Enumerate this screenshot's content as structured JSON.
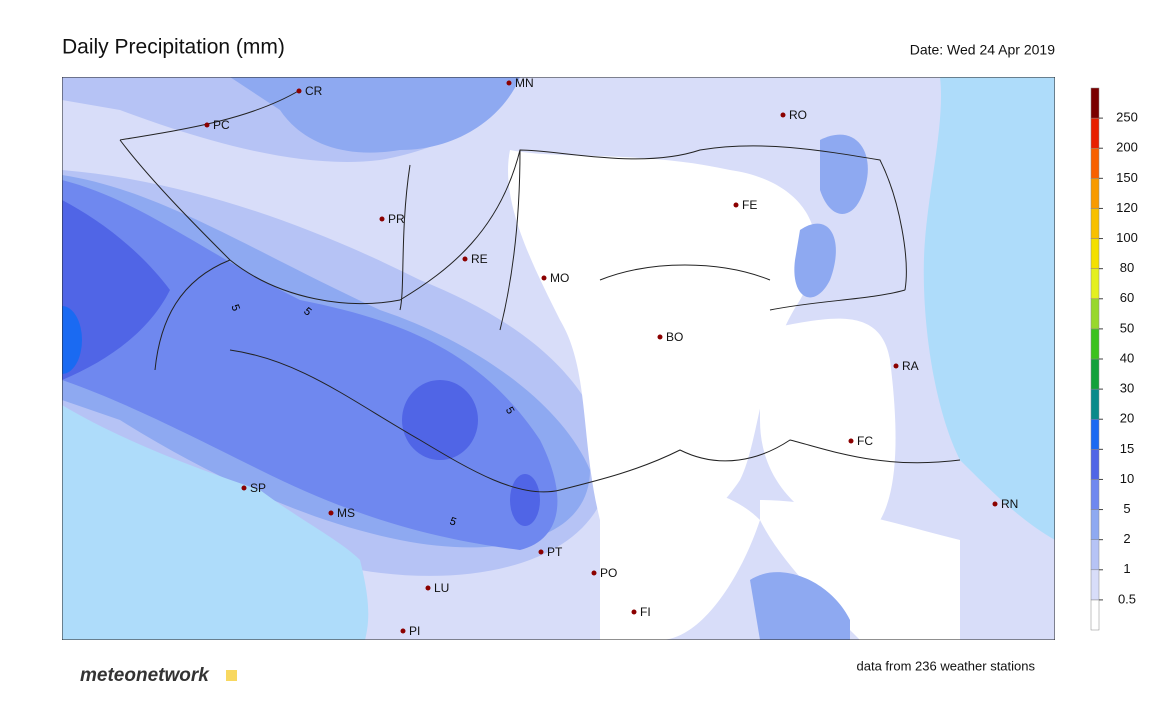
{
  "title": "Daily Precipitation (mm)",
  "date": "Date: Wed 24 Apr 2019",
  "cities": [
    "CR",
    "MN",
    "PC",
    "RO",
    "FE",
    "PR",
    "RE",
    "MO",
    "BO",
    "RA",
    "FC",
    "SP",
    "MS",
    "RN",
    "PT",
    "PO",
    "LU",
    "FI",
    "PI"
  ],
  "contour_labels": [
    5,
    5,
    5,
    5
  ],
  "legend": {
    "levels": [
      0.5,
      1,
      2,
      5,
      10,
      15,
      20,
      30,
      40,
      50,
      60,
      80,
      100,
      120,
      150,
      200,
      250
    ],
    "colors": [
      "#ffffff",
      "#d8ddf9",
      "#b6c3f5",
      "#8ea9f1",
      "#6f88ef",
      "#5065e6",
      "#1a6af2",
      "#0a8a8a",
      "#12a13a",
      "#3cc21e",
      "#98d82c",
      "#e4f020",
      "#f4e000",
      "#f8c000",
      "#f89a00",
      "#f86000",
      "#e82000",
      "#7a0000"
    ]
  },
  "footer": "data from 236 weather stations",
  "logo": "meteonetwork"
}
